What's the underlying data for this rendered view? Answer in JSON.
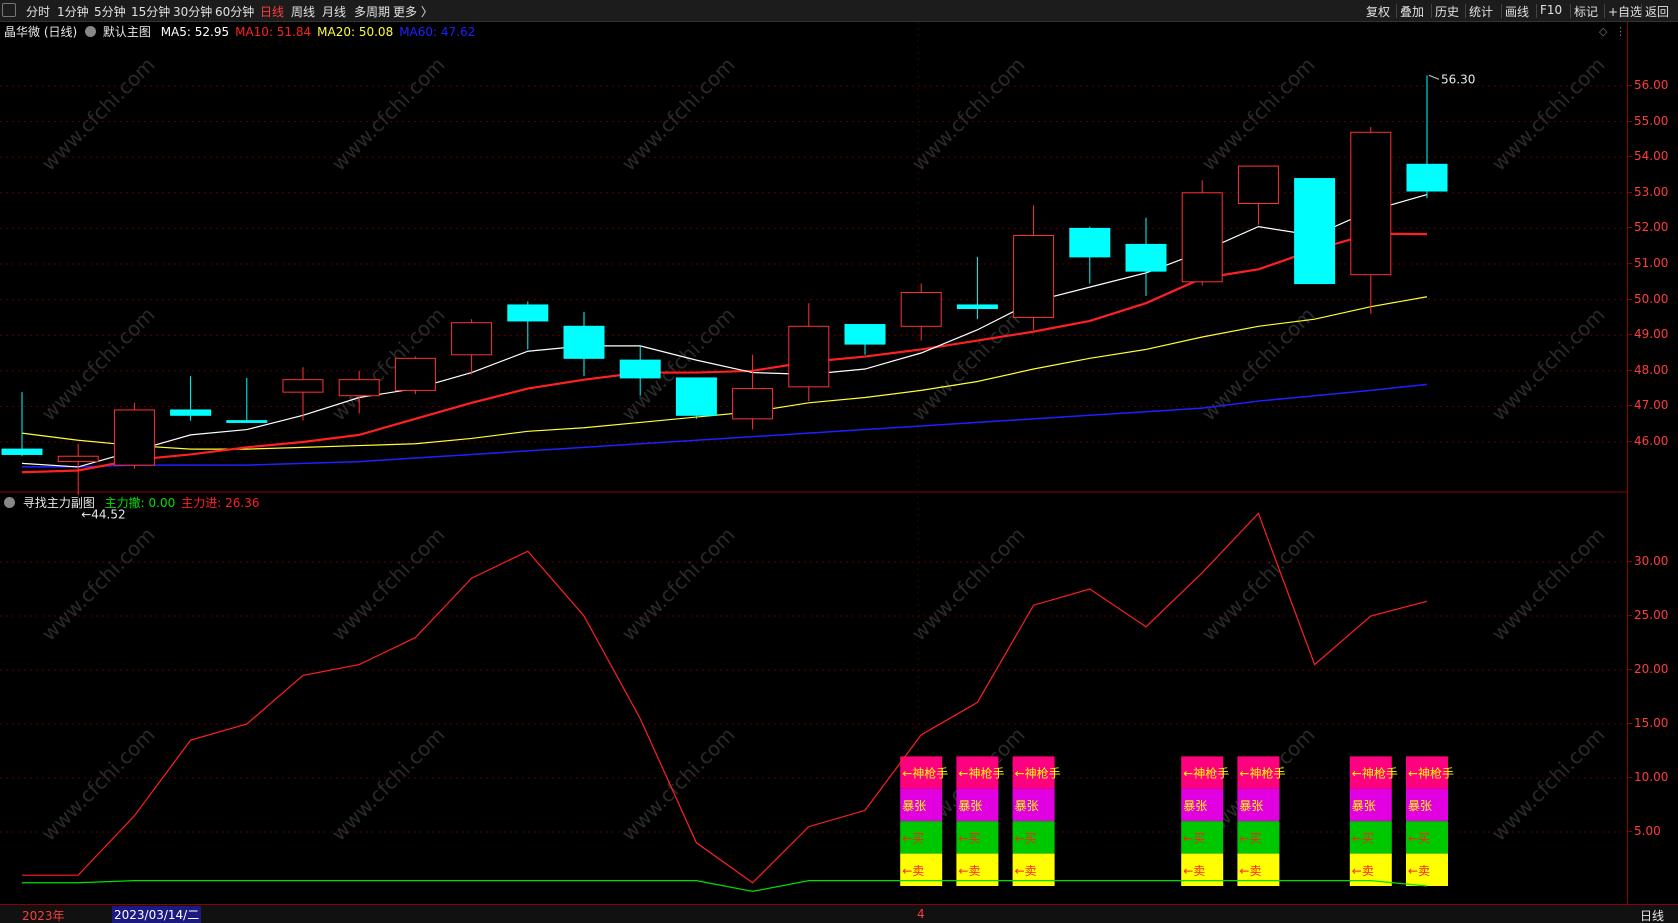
{
  "toolbar": {
    "periods": [
      "分时",
      "1分钟",
      "5分钟",
      "15分钟",
      "30分钟",
      "60分钟",
      "日线",
      "周线",
      "月线",
      "多周期",
      "更多 〉"
    ],
    "active_period": "日线",
    "tools": [
      "复权",
      "叠加",
      "历史",
      "统计",
      "画线",
      "F10",
      "标记",
      "+自选",
      "返回"
    ]
  },
  "main_panel": {
    "title": "晶华微 (日线)",
    "indicator_name": "默认主图",
    "ma": [
      {
        "label": "MA5: 52.95",
        "color": "#ffffff"
      },
      {
        "label": "MA10: 51.84",
        "color": "#ff2020"
      },
      {
        "label": "MA20: 50.08",
        "color": "#ffff30"
      },
      {
        "label": "MA60: 47.62",
        "color": "#2020ff"
      }
    ],
    "high_label": "56.30",
    "low_label": "44.52",
    "y_ticks": [
      "56.00",
      "55.00",
      "54.00",
      "53.00",
      "52.00",
      "51.00",
      "50.00",
      "49.00",
      "48.00",
      "47.00",
      "46.00"
    ]
  },
  "sub_panel": {
    "title": "寻找主力副图",
    "indicators": [
      {
        "label": "主力撤: 0.00",
        "color": "#00e000"
      },
      {
        "label": "主力进: 26.36",
        "color": "#ff2020"
      }
    ],
    "y_ticks": [
      "30.00",
      "25.00",
      "20.00",
      "15.00",
      "10.00",
      "5.00"
    ],
    "signal_labels": {
      "sniper": "←神枪手",
      "surge": "暴张",
      "buy": "←买",
      "sell": "←卖"
    }
  },
  "bottom": {
    "year": "2023年",
    "cursor_date": "2023/03/14/二",
    "month_mark": "4",
    "period_label": "日线"
  },
  "watermark": "www.cfchi.com",
  "colors": {
    "up": "#ff3232",
    "down": "#00ffff",
    "sniper": "#ff0080",
    "surge": "#e000e0",
    "buy": "#00c800",
    "sell": "#ffff00"
  },
  "chart_data": {
    "type": "candlestick",
    "price_range": [
      44.5,
      56.3
    ],
    "candles": [
      {
        "o": 45.8,
        "h": 47.4,
        "l": 45.6,
        "c": 45.65
      },
      {
        "o": 45.45,
        "h": 45.95,
        "l": 44.52,
        "c": 45.6
      },
      {
        "o": 45.35,
        "h": 47.1,
        "l": 45.25,
        "c": 46.9
      },
      {
        "o": 46.9,
        "h": 47.85,
        "l": 46.6,
        "c": 46.75
      },
      {
        "o": 46.6,
        "h": 47.8,
        "l": 46.55,
        "c": 46.55
      },
      {
        "o": 47.4,
        "h": 48.1,
        "l": 46.6,
        "c": 47.75
      },
      {
        "o": 47.3,
        "h": 48.0,
        "l": 46.8,
        "c": 47.75
      },
      {
        "o": 47.45,
        "h": 48.4,
        "l": 47.35,
        "c": 48.35
      },
      {
        "o": 48.45,
        "h": 49.45,
        "l": 47.9,
        "c": 49.35
      },
      {
        "o": 49.85,
        "h": 49.95,
        "l": 48.6,
        "c": 49.4
      },
      {
        "o": 49.25,
        "h": 49.65,
        "l": 47.85,
        "c": 48.35
      },
      {
        "o": 48.3,
        "h": 48.7,
        "l": 47.3,
        "c": 47.8
      },
      {
        "o": 47.8,
        "h": 47.8,
        "l": 46.65,
        "c": 46.75
      },
      {
        "o": 46.65,
        "h": 48.45,
        "l": 46.35,
        "c": 47.5
      },
      {
        "o": 47.55,
        "h": 49.9,
        "l": 47.15,
        "c": 49.25
      },
      {
        "o": 49.3,
        "h": 49.3,
        "l": 48.45,
        "c": 48.75
      },
      {
        "o": 49.25,
        "h": 50.45,
        "l": 48.85,
        "c": 50.2
      },
      {
        "o": 49.85,
        "h": 51.2,
        "l": 49.45,
        "c": 49.75
      },
      {
        "o": 49.5,
        "h": 52.65,
        "l": 49.15,
        "c": 51.8
      },
      {
        "o": 52.0,
        "h": 52.05,
        "l": 50.45,
        "c": 51.2
      },
      {
        "o": 51.55,
        "h": 52.3,
        "l": 50.1,
        "c": 50.8
      },
      {
        "o": 50.5,
        "h": 53.35,
        "l": 50.4,
        "c": 53.0
      },
      {
        "o": 52.7,
        "h": 53.75,
        "l": 52.1,
        "c": 53.75
      },
      {
        "o": 53.4,
        "h": 53.4,
        "l": 50.45,
        "c": 50.45
      },
      {
        "o": 50.7,
        "h": 54.85,
        "l": 49.6,
        "c": 54.7
      },
      {
        "o": 53.8,
        "h": 56.3,
        "l": 52.85,
        "c": 53.05
      }
    ],
    "ma5": [
      45.4,
      45.3,
      45.75,
      46.2,
      46.35,
      46.75,
      47.25,
      47.5,
      47.95,
      48.55,
      48.7,
      48.7,
      48.3,
      47.95,
      47.9,
      48.05,
      48.5,
      49.15,
      49.95,
      50.35,
      50.75,
      51.35,
      52.05,
      51.8,
      52.5,
      52.95
    ],
    "ma10": [
      45.15,
      45.2,
      45.5,
      45.65,
      45.85,
      46.0,
      46.2,
      46.65,
      47.1,
      47.5,
      47.75,
      47.95,
      47.95,
      48.0,
      48.25,
      48.4,
      48.6,
      48.85,
      49.1,
      49.4,
      49.9,
      50.6,
      50.85,
      51.4,
      51.85,
      51.84
    ],
    "ma20": [
      46.25,
      46.05,
      45.9,
      45.8,
      45.8,
      45.85,
      45.9,
      45.95,
      46.1,
      46.3,
      46.4,
      46.55,
      46.7,
      46.85,
      47.1,
      47.25,
      47.45,
      47.7,
      48.05,
      48.35,
      48.6,
      48.95,
      49.25,
      49.45,
      49.8,
      50.08
    ],
    "ma60": [
      45.3,
      45.3,
      45.35,
      45.35,
      45.35,
      45.4,
      45.45,
      45.55,
      45.65,
      45.75,
      45.85,
      45.95,
      46.05,
      46.15,
      46.25,
      46.35,
      46.45,
      46.55,
      46.65,
      46.75,
      46.85,
      46.95,
      47.15,
      47.3,
      47.45,
      47.62
    ],
    "sub_range": [
      0,
      35
    ],
    "main_in": [
      1.0,
      1.0,
      6.5,
      13.5,
      15.0,
      19.5,
      20.5,
      23.0,
      28.5,
      31.0,
      25.0,
      15.5,
      4.0,
      0.3,
      5.5,
      7.0,
      14.0,
      17.0,
      26.0,
      27.5,
      24.0,
      29.0,
      34.5,
      20.5,
      25.0,
      26.36
    ],
    "main_out": [
      0.3,
      0.3,
      0.5,
      0.5,
      0.5,
      0.5,
      0.5,
      0.5,
      0.5,
      0.5,
      0.5,
      0.5,
      0.5,
      -0.5,
      0.5,
      0.5,
      0.5,
      0.5,
      0.5,
      0.5,
      0.5,
      0.5,
      0.5,
      0.5,
      0.5,
      0.0
    ],
    "signals": [
      16,
      17,
      18,
      21,
      22,
      24,
      25
    ]
  }
}
